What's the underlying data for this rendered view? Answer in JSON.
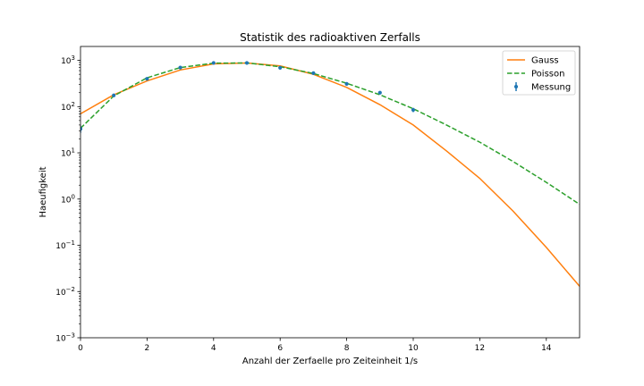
{
  "chart_data": {
    "type": "line",
    "title": "Statistik des radioaktiven Zerfalls",
    "xlabel": "Anzahl der Zerfaelle pro Zeiteinheit 1/s",
    "ylabel": "Haeufigkeit",
    "xlim": [
      0,
      15
    ],
    "ylim": [
      0.001,
      2000
    ],
    "yscale": "log",
    "x_ticks": [
      0,
      2,
      4,
      6,
      8,
      10,
      12,
      14
    ],
    "y_ticks": [
      {
        "value": 0.001,
        "base": "10",
        "exp": "−3"
      },
      {
        "value": 0.01,
        "base": "10",
        "exp": "−2"
      },
      {
        "value": 0.1,
        "base": "10",
        "exp": "−1"
      },
      {
        "value": 1,
        "base": "10",
        "exp": "0"
      },
      {
        "value": 10,
        "base": "10",
        "exp": "1"
      },
      {
        "value": 100,
        "base": "10",
        "exp": "2"
      },
      {
        "value": 1000,
        "base": "10",
        "exp": "3"
      }
    ],
    "grid": false,
    "legend_position": "top-right",
    "series": [
      {
        "name": "Gauss",
        "kind": "line",
        "color": "#ff7f0e",
        "dash": "solid",
        "x": [
          0,
          1,
          2,
          3,
          4,
          5,
          6,
          7,
          8,
          9,
          10,
          11,
          12,
          13,
          14,
          15
        ],
        "y": [
          70,
          180,
          360,
          620,
          840,
          880,
          760,
          500,
          260,
          110,
          40,
          11,
          2.8,
          0.55,
          0.09,
          0.013
        ]
      },
      {
        "name": "Poisson",
        "kind": "line",
        "color": "#2ca02c",
        "dash": "dashed",
        "x": [
          0,
          1,
          2,
          3,
          4,
          5,
          6,
          7,
          8,
          9,
          10,
          11,
          12,
          13,
          14,
          15
        ],
        "y": [
          34,
          170,
          420,
          700,
          870,
          880,
          730,
          520,
          320,
          180,
          90,
          40,
          17,
          6.5,
          2.3,
          0.77
        ]
      },
      {
        "name": "Messung",
        "kind": "errorbar",
        "color": "#1f77b4",
        "x": [
          0,
          1,
          2,
          3,
          4,
          5,
          6,
          7,
          8,
          9,
          10
        ],
        "y": [
          33,
          175,
          400,
          700,
          880,
          880,
          690,
          530,
          310,
          200,
          85
        ],
        "yerr": [
          6,
          13,
          20,
          26,
          30,
          30,
          26,
          23,
          18,
          14,
          9
        ]
      }
    ]
  }
}
